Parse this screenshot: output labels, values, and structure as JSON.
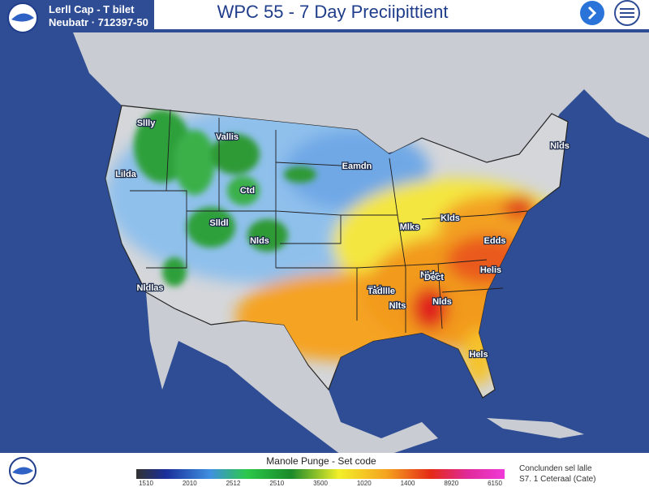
{
  "header": {
    "agency_line1": "Lerll Cap - T bilet",
    "agency_line2": "Neubatr · 712397-50",
    "title": "WPC 55 - 7 Day Preciipittient"
  },
  "map": {
    "labels": [
      "Sllly",
      "Vallis",
      "Lilda",
      "Ctd",
      "Slldl",
      "Nlds",
      "Nldlas",
      "Eamdn",
      "Mlks",
      "Klds",
      "Nlde",
      "Tlds",
      "Dect",
      "Helis",
      "Nlds",
      "Tadllle",
      "Nlts",
      "Nlds",
      "Hels",
      "Edds"
    ]
  },
  "legend": {
    "title": "Manole Punge - Set code",
    "ticks": [
      "1510",
      "2010",
      "2512",
      "2510",
      "3500",
      "1020",
      "1400",
      "8920",
      "6150"
    ],
    "note_line1": "Conclunden sel lalle",
    "note_line2": "S7. 1 Ceteraal (Cate)"
  }
}
